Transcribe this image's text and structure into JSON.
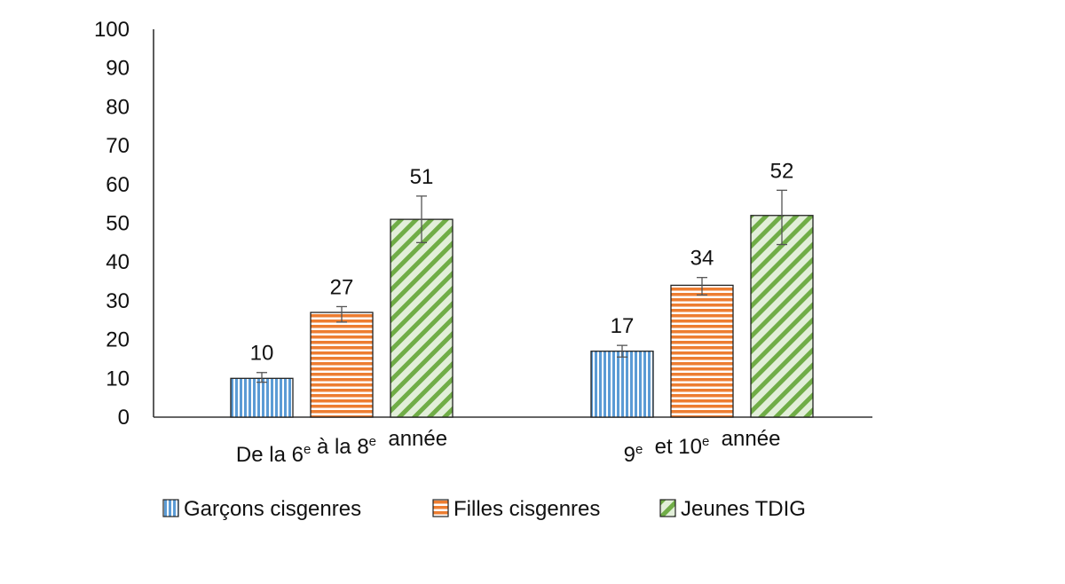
{
  "chart_data": {
    "type": "bar",
    "categories": [
      {
        "parts": [
          [
            "De la 6",
            false
          ],
          [
            "e",
            true
          ],
          [
            " à la 8",
            false
          ],
          [
            "e",
            true
          ],
          [
            "  année",
            false
          ]
        ]
      },
      {
        "parts": [
          [
            "9",
            false
          ],
          [
            "e",
            true
          ],
          [
            "  et 10",
            false
          ],
          [
            "e",
            true
          ],
          [
            "  année",
            false
          ]
        ]
      }
    ],
    "category_text": [
      "De la 6e à la 8e année",
      "9e et 10e année"
    ],
    "series": [
      {
        "name": "Garçons cisgenres",
        "values": [
          10,
          17
        ],
        "err_low": [
          9,
          15.5
        ],
        "err_high": [
          11.5,
          18.5
        ],
        "color": "#5b9bd5",
        "pattern": "vertical-stripes"
      },
      {
        "name": "Filles cisgenres",
        "values": [
          27,
          34
        ],
        "err_low": [
          24.5,
          31.5
        ],
        "err_high": [
          28.5,
          36
        ],
        "color": "#ed7d31",
        "pattern": "horizontal-stripes"
      },
      {
        "name": "Jeunes TDIG",
        "values": [
          51,
          52
        ],
        "err_low": [
          45,
          44.5
        ],
        "err_high": [
          57,
          58.5
        ],
        "color": "#70ad47",
        "pattern": "diagonal-stripes"
      }
    ],
    "data_labels": [
      [
        "10",
        "17"
      ],
      [
        "27",
        "34"
      ],
      [
        "51",
        "52"
      ]
    ],
    "ylim": [
      0,
      100
    ],
    "yticks": [
      "0",
      "10",
      "20",
      "30",
      "40",
      "50",
      "60",
      "70",
      "80",
      "90",
      "100"
    ],
    "grid": false,
    "legend_position": "bottom",
    "title": "",
    "xlabel": "",
    "ylabel": ""
  }
}
